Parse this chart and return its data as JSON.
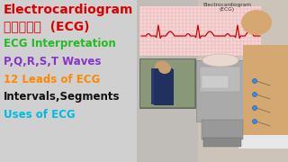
{
  "bg_color": "#c8c8c8",
  "right_panel_color": "#b0b0b0",
  "title_line1": "Electrocardiogram",
  "title_line1_color": "#dd0000",
  "title_line2_hindi": "हिंदी",
  "title_line2_ecg": "  (ECG)",
  "title_line2_hindi_color": "#dd0000",
  "title_line2_ecg_color": "#dd0000",
  "lines": [
    {
      "text": "ECG Interpretation",
      "color": "#22bb22"
    },
    {
      "text": "P,Q,R,S,T Waves",
      "color": "#8833cc"
    },
    {
      "text": "12 Leads of ECG",
      "color": "#ff8800"
    },
    {
      "text": "Intervals,Segments",
      "color": "#111111"
    },
    {
      "text": "Uses of ECG",
      "color": "#00bbdd"
    }
  ],
  "top_right_label1": "Electrocardiogram",
  "top_right_label2": "(ECG)",
  "top_right_color": "#333333",
  "ecg_line_color": "#cc0000",
  "ecg_grid_bg": "#f5d5d5",
  "ecg_grid_color": "#e8a0a0",
  "person_skin": "#d4a870",
  "person_bg": "#c8bfb0",
  "machine_color": "#909090",
  "photo_bg": "#8a9080",
  "photo_skin": "#c8a878"
}
